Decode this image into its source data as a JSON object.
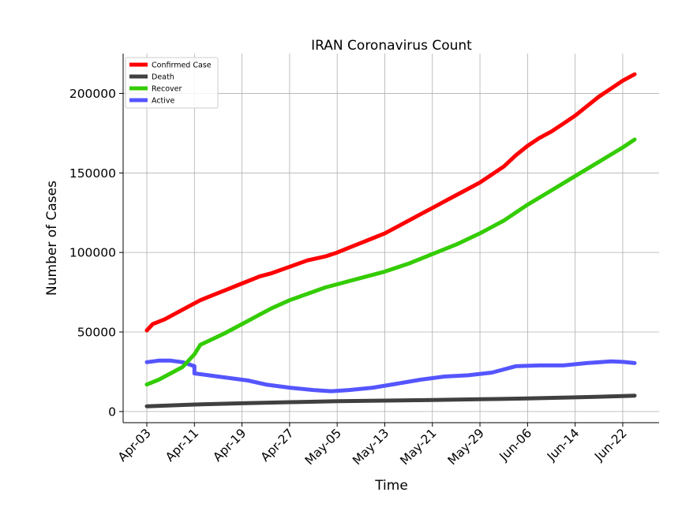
{
  "chart_data": {
    "type": "line",
    "title": "IRAN Coronavirus Count",
    "xlabel": "Time",
    "ylabel": "Number of Cases",
    "x_start": "Apr-03",
    "x_end": "Jun-24",
    "x_ticks": [
      "Apr-03",
      "Apr-11",
      "Apr-19",
      "Apr-27",
      "May-05",
      "May-13",
      "May-21",
      "May-29",
      "Jun-06",
      "Jun-14",
      "Jun-22"
    ],
    "y_ticks": [
      0,
      50000,
      100000,
      150000,
      200000
    ],
    "ylim": [
      -7000,
      225000
    ],
    "grid": true,
    "legend_position": "top-left",
    "series": [
      {
        "name": "Confirmed Case",
        "color": "#ff0000",
        "points": [
          [
            "Apr-03",
            51000
          ],
          [
            "Apr-04",
            55000
          ],
          [
            "Apr-06",
            58000
          ],
          [
            "Apr-08",
            62000
          ],
          [
            "Apr-10",
            66000
          ],
          [
            "Apr-12",
            70000
          ],
          [
            "Apr-14",
            73000
          ],
          [
            "Apr-16",
            76000
          ],
          [
            "Apr-18",
            79000
          ],
          [
            "Apr-20",
            82000
          ],
          [
            "Apr-22",
            85000
          ],
          [
            "Apr-24",
            87000
          ],
          [
            "Apr-27",
            91000
          ],
          [
            "Apr-30",
            95000
          ],
          [
            "May-03",
            97500
          ],
          [
            "May-05",
            100000
          ],
          [
            "May-07",
            103000
          ],
          [
            "May-09",
            106000
          ],
          [
            "May-11",
            109000
          ],
          [
            "May-13",
            112000
          ],
          [
            "May-15",
            116000
          ],
          [
            "May-17",
            120000
          ],
          [
            "May-19",
            124000
          ],
          [
            "May-21",
            128000
          ],
          [
            "May-23",
            132000
          ],
          [
            "May-25",
            136000
          ],
          [
            "May-27",
            140000
          ],
          [
            "May-29",
            144000
          ],
          [
            "May-31",
            149000
          ],
          [
            "Jun-02",
            154000
          ],
          [
            "Jun-04",
            161000
          ],
          [
            "Jun-06",
            167000
          ],
          [
            "Jun-08",
            172000
          ],
          [
            "Jun-10",
            176000
          ],
          [
            "Jun-12",
            181000
          ],
          [
            "Jun-14",
            186000
          ],
          [
            "Jun-16",
            192000
          ],
          [
            "Jun-18",
            198000
          ],
          [
            "Jun-20",
            203000
          ],
          [
            "Jun-22",
            208000
          ],
          [
            "Jun-24",
            212000
          ]
        ]
      },
      {
        "name": "Death",
        "color": "#404040",
        "points": [
          [
            "Apr-03",
            3300
          ],
          [
            "Apr-11",
            4400
          ],
          [
            "Apr-19",
            5200
          ],
          [
            "Apr-27",
            5900
          ],
          [
            "May-05",
            6500
          ],
          [
            "May-13",
            6900
          ],
          [
            "May-21",
            7300
          ],
          [
            "May-29",
            7700
          ],
          [
            "Jun-06",
            8200
          ],
          [
            "Jun-14",
            8900
          ],
          [
            "Jun-22",
            9700
          ],
          [
            "Jun-24",
            10000
          ]
        ]
      },
      {
        "name": "Recover",
        "color": "#33cc00",
        "points": [
          [
            "Apr-03",
            17000
          ],
          [
            "Apr-05",
            20000
          ],
          [
            "Apr-07",
            24000
          ],
          [
            "Apr-09",
            28000
          ],
          [
            "Apr-10",
            32000
          ],
          [
            "Apr-11",
            36000
          ],
          [
            "Apr-12",
            42000
          ],
          [
            "Apr-14",
            45500
          ],
          [
            "Apr-16",
            49000
          ],
          [
            "Apr-18",
            53000
          ],
          [
            "Apr-20",
            57000
          ],
          [
            "Apr-22",
            61000
          ],
          [
            "Apr-24",
            65000
          ],
          [
            "Apr-27",
            70000
          ],
          [
            "Apr-30",
            74000
          ],
          [
            "May-03",
            78000
          ],
          [
            "May-05",
            80000
          ],
          [
            "May-09",
            84000
          ],
          [
            "May-13",
            88000
          ],
          [
            "May-17",
            93000
          ],
          [
            "May-21",
            99000
          ],
          [
            "May-25",
            105000
          ],
          [
            "May-29",
            112000
          ],
          [
            "Jun-02",
            120000
          ],
          [
            "Jun-06",
            130000
          ],
          [
            "Jun-10",
            139000
          ],
          [
            "Jun-14",
            148000
          ],
          [
            "Jun-18",
            157000
          ],
          [
            "Jun-22",
            166000
          ],
          [
            "Jun-24",
            171000
          ]
        ]
      },
      {
        "name": "Active",
        "color": "#5555ff",
        "points": [
          [
            "Apr-03",
            31000
          ],
          [
            "Apr-05",
            32000
          ],
          [
            "Apr-07",
            32000
          ],
          [
            "Apr-09",
            31000
          ],
          [
            "Apr-11",
            28500
          ],
          [
            "Apr-11",
            24000
          ],
          [
            "Apr-14",
            22500
          ],
          [
            "Apr-17",
            21000
          ],
          [
            "Apr-20",
            19500
          ],
          [
            "Apr-23",
            17000
          ],
          [
            "Apr-27",
            15000
          ],
          [
            "May-01",
            13500
          ],
          [
            "May-04",
            12800
          ],
          [
            "May-07",
            13500
          ],
          [
            "May-11",
            15000
          ],
          [
            "May-15",
            17500
          ],
          [
            "May-19",
            20000
          ],
          [
            "May-23",
            22000
          ],
          [
            "May-27",
            22800
          ],
          [
            "May-31",
            24500
          ],
          [
            "Jun-04",
            28500
          ],
          [
            "Jun-08",
            29000
          ],
          [
            "Jun-12",
            29000
          ],
          [
            "Jun-16",
            30500
          ],
          [
            "Jun-20",
            31500
          ],
          [
            "Jun-22",
            31200
          ],
          [
            "Jun-24",
            30500
          ]
        ]
      }
    ]
  }
}
